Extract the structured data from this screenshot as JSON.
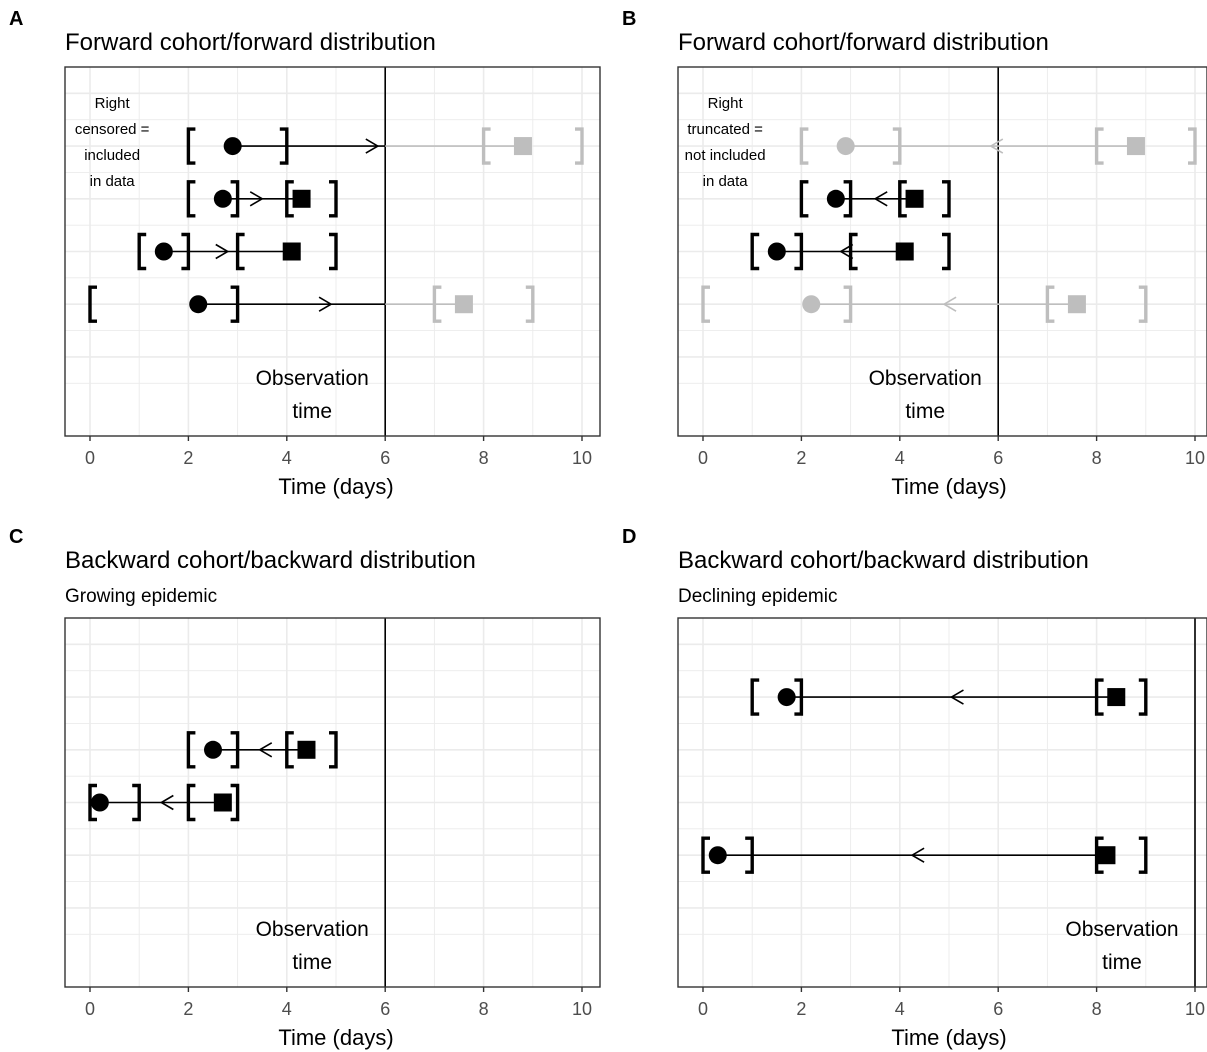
{
  "figure": {
    "xlabel": "Time (days)",
    "x_ticks": [
      0,
      2,
      4,
      6,
      8,
      10
    ],
    "xlim": [
      -0.5,
      10.5
    ],
    "grid": true,
    "colors": {
      "active": "#000000",
      "inactive": "#bebebe",
      "grid": "#ebebeb"
    },
    "observation_label": [
      "Observation",
      "time"
    ]
  },
  "chart_data": [
    {
      "type": "timeline",
      "tag": "A",
      "title": "Forward cohort/forward distribution",
      "subtitle": "",
      "xlabel": "Time (days)",
      "observation_time": 6,
      "annotation": [
        "Right",
        "censored =",
        "included",
        "in data"
      ],
      "row_levels": 6,
      "intervals": [
        {
          "row": 5,
          "onset_window": [
            2,
            4
          ],
          "onset": 2.9,
          "outcome_window": [
            8,
            10
          ],
          "outcome": 8.8,
          "arrow": "forward",
          "status": "censored"
        },
        {
          "row": 4,
          "onset_window": [
            2,
            3
          ],
          "onset": 2.7,
          "outcome_window": [
            4,
            5
          ],
          "outcome": 4.3,
          "arrow": "forward",
          "status": "observed"
        },
        {
          "row": 3,
          "onset_window": [
            1,
            2
          ],
          "onset": 1.5,
          "outcome_window": [
            3,
            5
          ],
          "outcome": 4.1,
          "arrow": "forward",
          "status": "observed"
        },
        {
          "row": 2,
          "onset_window": [
            0,
            3
          ],
          "onset": 2.2,
          "outcome_window": [
            7,
            9
          ],
          "outcome": 7.6,
          "arrow": "forward",
          "status": "censored"
        }
      ]
    },
    {
      "type": "timeline",
      "tag": "B",
      "title": "Forward cohort/forward distribution",
      "subtitle": "",
      "xlabel": "Time (days)",
      "observation_time": 6,
      "annotation": [
        "Right",
        "truncated =",
        "not included",
        "in data"
      ],
      "row_levels": 6,
      "intervals": [
        {
          "row": 5,
          "onset_window": [
            2,
            4
          ],
          "onset": 2.9,
          "outcome_window": [
            8,
            10
          ],
          "outcome": 8.8,
          "arrow": "backward",
          "status": "excluded"
        },
        {
          "row": 4,
          "onset_window": [
            2,
            3
          ],
          "onset": 2.7,
          "outcome_window": [
            4,
            5
          ],
          "outcome": 4.3,
          "arrow": "backward",
          "status": "observed"
        },
        {
          "row": 3,
          "onset_window": [
            1,
            2
          ],
          "onset": 1.5,
          "outcome_window": [
            3,
            5
          ],
          "outcome": 4.1,
          "arrow": "backward",
          "status": "observed"
        },
        {
          "row": 2,
          "onset_window": [
            0,
            3
          ],
          "onset": 2.2,
          "outcome_window": [
            7,
            9
          ],
          "outcome": 7.6,
          "arrow": "backward",
          "status": "excluded"
        }
      ]
    },
    {
      "type": "timeline",
      "tag": "C",
      "title": "Backward cohort/backward distribution",
      "subtitle": "Growing epidemic",
      "xlabel": "Time (days)",
      "observation_time": 6,
      "annotation": [],
      "row_levels": 6,
      "intervals": [
        {
          "row": 4,
          "onset_window": [
            2,
            3
          ],
          "onset": 2.5,
          "outcome_window": [
            4,
            5
          ],
          "outcome": 4.4,
          "arrow": "backward",
          "status": "observed"
        },
        {
          "row": 3,
          "onset_window": [
            0,
            1
          ],
          "onset": 0.2,
          "outcome_window": [
            2,
            3
          ],
          "outcome": 2.7,
          "arrow": "backward",
          "status": "observed"
        }
      ]
    },
    {
      "type": "timeline",
      "tag": "D",
      "title": "Backward cohort/backward distribution",
      "subtitle": "Declining epidemic",
      "xlabel": "Time (days)",
      "observation_time": 10,
      "annotation": [],
      "row_levels": 6,
      "intervals": [
        {
          "row": 5,
          "onset_window": [
            1,
            2
          ],
          "onset": 1.7,
          "outcome_window": [
            8,
            9
          ],
          "outcome": 8.4,
          "arrow": "backward",
          "status": "observed"
        },
        {
          "row": 2,
          "onset_window": [
            0,
            1
          ],
          "onset": 0.3,
          "outcome_window": [
            8,
            9
          ],
          "outcome": 8.2,
          "arrow": "backward",
          "status": "observed"
        }
      ]
    }
  ]
}
